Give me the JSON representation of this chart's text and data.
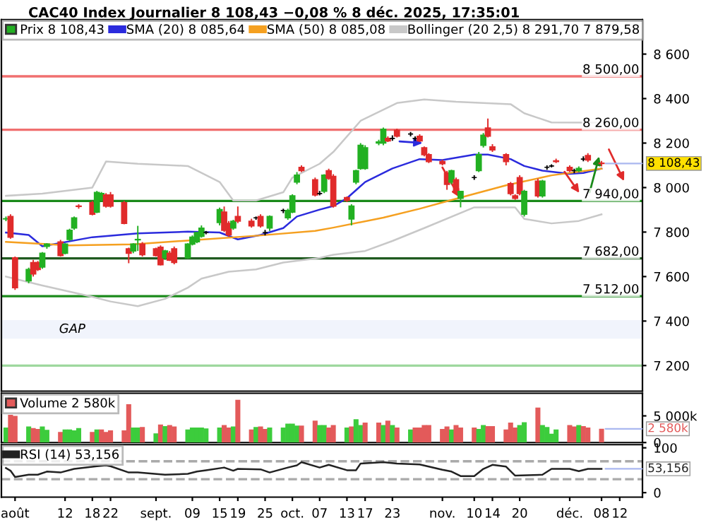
{
  "chart_data": [
    {
      "type": "candlestick",
      "title": "CAC40 Index Journalier 8 108,43 −0,08 % 8 déc. 2025, 17:35:01",
      "legend": "top left",
      "tick_labels": "y",
      "x": [
        "2025-07-30",
        "2025-07-31",
        "2025-08-01",
        "2025-08-04",
        "2025-08-05",
        "2025-08-06",
        "2025-08-07",
        "2025-08-08",
        "2025-08-11",
        "2025-08-12",
        "2025-08-13",
        "2025-08-14",
        "2025-08-15",
        "2025-08-18",
        "2025-08-19",
        "2025-08-20",
        "2025-08-21",
        "2025-08-22",
        "2025-08-25",
        "2025-08-26",
        "2025-08-27",
        "2025-08-28",
        "2025-08-29",
        "2025-09-01",
        "2025-09-02",
        "2025-09-03",
        "2025-09-04",
        "2025-09-05",
        "2025-09-08",
        "2025-09-09",
        "2025-09-10",
        "2025-09-11",
        "2025-09-12",
        "2025-09-15",
        "2025-09-16",
        "2025-09-17",
        "2025-09-18",
        "2025-09-19",
        "2025-09-22",
        "2025-09-23",
        "2025-09-24",
        "2025-09-25",
        "2025-09-26",
        "2025-09-29",
        "2025-09-30",
        "2025-10-01",
        "2025-10-02",
        "2025-10-03",
        "2025-10-06",
        "2025-10-07",
        "2025-10-08",
        "2025-10-09",
        "2025-10-10",
        "2025-10-13",
        "2025-10-14",
        "2025-10-15",
        "2025-10-16",
        "2025-10-17",
        "2025-10-20",
        "2025-10-21",
        "2025-10-22",
        "2025-10-23",
        "2025-10-24",
        "2025-10-27",
        "2025-10-28",
        "2025-10-29",
        "2025-10-30",
        "2025-10-31",
        "2025-11-03",
        "2025-11-04",
        "2025-11-05",
        "2025-11-06",
        "2025-11-07",
        "2025-11-10",
        "2025-11-11",
        "2025-11-12",
        "2025-11-13",
        "2025-11-14",
        "2025-11-17",
        "2025-11-18",
        "2025-11-19",
        "2025-11-20",
        "2025-11-21",
        "2025-11-24",
        "2025-11-25",
        "2025-11-26",
        "2025-11-27",
        "2025-11-28",
        "2025-12-01",
        "2025-12-02",
        "2025-12-03",
        "2025-12-04",
        "2025-12-05",
        "2025-12-08"
      ],
      "xlim": [
        "2025-07-29",
        "2025-12-17"
      ],
      "ylim": [
        7085,
        8755
      ],
      "yticks": [
        {
          "value": 7200,
          "label": "7 200"
        },
        {
          "value": 7400,
          "label": "7 400"
        },
        {
          "value": 7600,
          "label": "7 600"
        },
        {
          "value": 7800,
          "label": "7 800"
        },
        {
          "value": 8000,
          "label": "8 000"
        },
        {
          "value": 8200,
          "label": "8 200"
        },
        {
          "value": 8400,
          "label": "8 400"
        },
        {
          "value": 8600,
          "label": "8 600"
        }
      ],
      "ref_lines": [
        {
          "axis": "y",
          "value": 8500,
          "label": "8 500,00",
          "color": "#f07070"
        },
        {
          "axis": "y",
          "value": 8260,
          "label": "8 260,00",
          "color": "#f07070"
        },
        {
          "axis": "y",
          "value": 7940,
          "label": "7 940,00",
          "color": "#1a8a1a"
        },
        {
          "axis": "y",
          "value": 7682,
          "label": "7 682,00",
          "color": "#1f5a1f"
        },
        {
          "axis": "y",
          "value": 7512,
          "label": "7 512,00",
          "color": "#1a8a1a"
        },
        {
          "axis": "y",
          "value": 7200,
          "label": null,
          "color": "#9ed89e"
        }
      ],
      "bands": [
        {
          "axis": "y",
          "from": 7325,
          "to": 7400,
          "label": "GAP",
          "color": "#c8d4f5"
        }
      ],
      "annotations": [
        {
          "text": "8 108,43",
          "x": "2025-12-08",
          "y": 8108.43
        }
      ],
      "series": [
        {
          "name": "Prix 8 108,43",
          "type": "candlestick",
          "ohlc": [
            [
              7859,
              7870,
              7849,
              7860
            ],
            [
              7870,
              7880,
              7770,
              7777
            ],
            [
              7684,
              7690,
              7540,
              7550
            ],
            [
              7581,
              7640,
              7570,
              7632
            ],
            [
              7663,
              7675,
              7600,
              7612
            ],
            [
              7663,
              7670,
              7625,
              7632
            ],
            [
              7643,
              7710,
              7635,
              7705
            ],
            [
              7736,
              7750,
              7725,
              7746
            ],
            [
              7756,
              7765,
              7690,
              7694
            ],
            [
              7705,
              7750,
              7700,
              7746
            ],
            [
              7767,
              7815,
              7760,
              7808
            ],
            [
              7818,
              7870,
              7810,
              7864
            ],
            [
              7917,
              7925,
              7905,
              7915
            ],
            [
              7932,
              7940,
              7875,
              7880
            ],
            [
              7890,
              7985,
              7885,
              7978
            ],
            [
              7946,
              7980,
              7940,
              7973
            ],
            [
              7967,
              7975,
              7910,
              7917
            ],
            [
              7967,
              7980,
              7910,
              7917
            ],
            [
              7932,
              7940,
              7835,
              7839
            ],
            [
              7725,
              7730,
              7660,
              7705
            ],
            [
              7715,
              7750,
              7705,
              7746
            ],
            [
              7765,
              7828,
              7715,
              7767
            ],
            [
              7746,
              7755,
              7690,
              7698
            ],
            [
              7725,
              7730,
              7690,
              7694
            ],
            [
              7732,
              7740,
              7650,
              7653
            ],
            [
              7684,
              7720,
              7675,
              7715
            ],
            [
              7705,
              7715,
              7670,
              7674
            ],
            [
              7725,
              7735,
              7655,
              7663
            ],
            [
              7684,
              7750,
              7680,
              7746
            ],
            [
              7746,
              7785,
              7740,
              7777
            ],
            [
              7756,
              7800,
              7750,
              7798
            ],
            [
              7781,
              7830,
              7775,
              7818
            ],
            [
              7798,
              7805,
              7790,
              7798
            ],
            [
              7843,
              7910,
              7830,
              7901
            ],
            [
              7890,
              7915,
              7800,
              7808
            ],
            [
              7839,
              7850,
              7780,
              7787
            ],
            [
              7818,
              7855,
              7810,
              7849
            ],
            [
              7870,
              7915,
              7840,
              7849
            ],
            [
              7849,
              7860,
              7820,
              7828
            ],
            [
              7864,
              7870,
              7855,
              7864
            ],
            [
              7870,
              7880,
              7820,
              7828
            ],
            [
              7798,
              7810,
              7785,
              7798
            ],
            [
              7818,
              7875,
              7805,
              7870
            ],
            [
              7897,
              7905,
              7885,
              7897
            ],
            [
              7864,
              7905,
              7855,
              7897
            ],
            [
              7890,
              7970,
              7885,
              7963
            ],
            [
              8025,
              8070,
              8015,
              8056
            ],
            [
              8091,
              8100,
              8070,
              8076
            ],
            [
              8035,
              8045,
              7960,
              7967
            ],
            [
              7973,
              7985,
              7965,
              7973
            ],
            [
              7983,
              8060,
              7975,
              8056
            ],
            [
              8076,
              8085,
              8035,
              8041
            ],
            [
              8050,
              8060,
              7910,
              7917
            ],
            [
              7955,
              7960,
              7935,
              7942
            ],
            [
              7859,
              7925,
              7830,
              7917
            ],
            [
              8025,
              8080,
              8015,
              8076
            ],
            [
              8086,
              8200,
              8080,
              8190
            ],
            [
              8086,
              8190,
              8080,
              8179
            ],
            [
              8200,
              8215,
              8190,
              8205
            ],
            [
              8200,
              8270,
              8190,
              8262
            ],
            [
              8221,
              8230,
              8205,
              8210
            ],
            [
              8221,
              8235,
              8210,
              8221
            ],
            [
              8258,
              8265,
              8225,
              8231
            ],
            [
              8241,
              8250,
              8230,
              8241
            ],
            [
              8221,
              8230,
              8210,
              8221
            ],
            [
              8231,
              8240,
              8205,
              8210
            ],
            [
              8179,
              8185,
              8140,
              8148
            ],
            [
              8148,
              8155,
              8110,
              8117
            ],
            [
              8117,
              8125,
              8100,
              8107
            ],
            [
              8066,
              8075,
              7990,
              8014
            ],
            [
              8025,
              8080,
              8015,
              8076
            ],
            [
              8035,
              8045,
              7975,
              7983
            ],
            [
              7952,
              7985,
              7911,
              7983
            ],
            [
              8045,
              8055,
              8035,
              8045
            ],
            [
              8076,
              8160,
              8070,
              8148
            ],
            [
              8190,
              8245,
              8180,
              8235
            ],
            [
              8268,
              8310,
              8225,
              8231
            ],
            [
              8183,
              8195,
              8160,
              8169
            ],
            [
              8148,
              8155,
              8100,
              8117
            ],
            [
              8018,
              8025,
              7965,
              7973
            ],
            [
              7963,
              7970,
              7945,
              7952
            ],
            [
              8045,
              8055,
              7965,
              7973
            ],
            [
              7880,
              7990,
              7870,
              7983
            ],
            [
              8029,
              8040,
              7955,
              7963
            ],
            [
              7963,
              8035,
              7955,
              8029
            ],
            [
              8091,
              8100,
              8080,
              8091
            ],
            [
              8097,
              8105,
              8090,
              8097
            ],
            [
              8120,
              8130,
              8110,
              8117
            ],
            [
              8091,
              8100,
              8070,
              8076
            ],
            [
              8076,
              8085,
              8065,
              8076
            ],
            [
              8076,
              8095,
              8070,
              8086
            ],
            [
              8128,
              8140,
              8118,
              8128
            ],
            [
              8144,
              8155,
              8115,
              8124
            ],
            [
              8110,
              8120,
              8095,
              8108.43
            ]
          ],
          "colors": [
            "#22b022",
            "#e02b2b",
            "#e02b2b",
            "#22b022",
            "#e02b2b",
            "#e02b2b",
            "#22b022",
            "#22b022",
            "#e02b2b",
            "#22b022",
            "#22b022",
            "#22b022",
            "#e02b2b",
            "#e02b2b",
            "#22b022",
            "#22b022",
            "#e02b2b",
            "#e02b2b",
            "#e02b2b",
            "#e02b2b",
            "#22b022",
            "#22b022",
            "#e02b2b",
            "#e02b2b",
            "#e02b2b",
            "#22b022",
            "#e02b2b",
            "#e02b2b",
            "#22b022",
            "#22b022",
            "#22b022",
            "#22b022",
            "#000000",
            "#22b022",
            "#e02b2b",
            "#e02b2b",
            "#22b022",
            "#e02b2b",
            "#e02b2b",
            "#000000",
            "#e02b2b",
            "#000000",
            "#22b022",
            "#000000",
            "#22b022",
            "#22b022",
            "#22b022",
            "#e02b2b",
            "#e02b2b",
            "#000000",
            "#22b022",
            "#e02b2b",
            "#e02b2b",
            "#e02b2b",
            "#22b022",
            "#22b022",
            "#22b022",
            "#22b022",
            "#22b022",
            "#22b022",
            "#e02b2b",
            "#000000",
            "#e02b2b",
            "#000000",
            "#000000",
            "#e02b2b",
            "#e02b2b",
            "#e02b2b",
            "#e02b2b",
            "#e02b2b",
            "#22b022",
            "#e02b2b",
            "#22b022",
            "#000000",
            "#22b022",
            "#22b022",
            "#e02b2b",
            "#e02b2b",
            "#e02b2b",
            "#e02b2b",
            "#e02b2b",
            "#e02b2b",
            "#22b022",
            "#e02b2b",
            "#22b022",
            "#000000",
            "#000000",
            "#e02b2b",
            "#e02b2b",
            "#000000",
            "#22b022",
            "#000000",
            "#e02b2b",
            "#e02b2b"
          ]
        },
        {
          "name": "SMA (20) 8 085,64",
          "type": "line",
          "color": "#2b2bdd",
          "x": [
            "2025-07-30",
            "2025-08-04",
            "2025-08-07",
            "2025-08-18",
            "2025-08-28",
            "2025-09-08",
            "2025-09-15",
            "2025-09-19",
            "2025-09-24",
            "2025-09-29",
            "2025-10-02",
            "2025-10-07",
            "2025-10-10",
            "2025-10-13",
            "2025-10-17",
            "2025-10-23",
            "2025-10-29",
            "2025-11-03",
            "2025-11-10",
            "2025-11-13",
            "2025-11-18",
            "2025-11-21",
            "2025-11-25",
            "2025-12-01",
            "2025-12-04",
            "2025-12-08"
          ],
          "values": [
            7798,
            7787,
            7736,
            7777,
            7794,
            7802,
            7798,
            7767,
            7787,
            7818,
            7870,
            7901,
            7917,
            7952,
            8025,
            8086,
            8128,
            8124,
            8148,
            8148,
            8128,
            8097,
            8076,
            8062,
            8066,
            8085.64
          ]
        },
        {
          "name": "SMA (50) 8 085,08",
          "type": "line",
          "color": "#f5a020",
          "x": [
            "2025-07-30",
            "2025-08-13",
            "2025-08-27",
            "2025-09-10",
            "2025-09-24",
            "2025-10-06",
            "2025-10-10",
            "2025-10-21",
            "2025-10-29",
            "2025-11-06",
            "2025-11-17",
            "2025-11-27",
            "2025-12-08"
          ],
          "values": [
            7756,
            7740,
            7745,
            7765,
            7785,
            7805,
            7820,
            7865,
            7905,
            7950,
            8010,
            8055,
            8085.08
          ]
        },
        {
          "name": "Bollinger (20 2,5) 8 291,70 7 879,58",
          "type": "line",
          "color": "#c8c8c8",
          "x": [
            "2025-07-30",
            "2025-08-07",
            "2025-08-18",
            "2025-08-21",
            "2025-08-28",
            "2025-09-08",
            "2025-09-15",
            "2025-09-18",
            "2025-09-23",
            "2025-09-29",
            "2025-10-01",
            "2025-10-07",
            "2025-10-10",
            "2025-10-16",
            "2025-10-24",
            "2025-10-30",
            "2025-11-06",
            "2025-11-18",
            "2025-11-21",
            "2025-11-27",
            "2025-12-08"
          ],
          "values": [
            7963,
            7973,
            8000,
            8117,
            8107,
            8097,
            8025,
            7942,
            7942,
            7979,
            8045,
            8107,
            8160,
            8300,
            8380,
            8396,
            8386,
            8375,
            8334,
            8293,
            8291.7
          ]
        },
        {
          "type": "line",
          "color": "#c8c8c8",
          "x": [
            "2025-07-30",
            "2025-08-07",
            "2025-08-18",
            "2025-08-22",
            "2025-08-28",
            "2025-09-03",
            "2025-09-08",
            "2025-09-11",
            "2025-09-17",
            "2025-09-23",
            "2025-09-29",
            "2025-10-07",
            "2025-10-10",
            "2025-10-17",
            "2025-10-23",
            "2025-10-30",
            "2025-11-10",
            "2025-11-19",
            "2025-11-21",
            "2025-11-27",
            "2025-12-03",
            "2025-12-08"
          ],
          "values": [
            7600,
            7560,
            7509,
            7488,
            7467,
            7500,
            7550,
            7591,
            7622,
            7632,
            7663,
            7684,
            7698,
            7715,
            7760,
            7818,
            7911,
            7911,
            7859,
            7839,
            7850,
            7879.58
          ]
        }
      ]
    },
    {
      "type": "bar",
      "legend": "top left",
      "tick_labels": "y",
      "x": [
        "2025-07-30",
        "2025-07-31",
        "2025-08-01",
        "2025-08-04",
        "2025-08-05",
        "2025-08-06",
        "2025-08-07",
        "2025-08-08",
        "2025-08-11",
        "2025-08-12",
        "2025-08-13",
        "2025-08-14",
        "2025-08-15",
        "2025-08-18",
        "2025-08-19",
        "2025-08-20",
        "2025-08-21",
        "2025-08-22",
        "2025-08-25",
        "2025-08-26",
        "2025-08-27",
        "2025-08-28",
        "2025-08-29",
        "2025-09-01",
        "2025-09-02",
        "2025-09-03",
        "2025-09-04",
        "2025-09-05",
        "2025-09-08",
        "2025-09-09",
        "2025-09-10",
        "2025-09-11",
        "2025-09-12",
        "2025-09-15",
        "2025-09-16",
        "2025-09-17",
        "2025-09-18",
        "2025-09-19",
        "2025-09-22",
        "2025-09-23",
        "2025-09-24",
        "2025-09-25",
        "2025-09-26",
        "2025-09-29",
        "2025-09-30",
        "2025-10-01",
        "2025-10-02",
        "2025-10-03",
        "2025-10-06",
        "2025-10-07",
        "2025-10-08",
        "2025-10-09",
        "2025-10-10",
        "2025-10-13",
        "2025-10-14",
        "2025-10-15",
        "2025-10-16",
        "2025-10-17",
        "2025-10-20",
        "2025-10-21",
        "2025-10-22",
        "2025-10-23",
        "2025-10-24",
        "2025-10-27",
        "2025-10-28",
        "2025-10-29",
        "2025-10-30",
        "2025-10-31",
        "2025-11-03",
        "2025-11-04",
        "2025-11-05",
        "2025-11-06",
        "2025-11-07",
        "2025-11-10",
        "2025-11-11",
        "2025-11-12",
        "2025-11-13",
        "2025-11-14",
        "2025-11-17",
        "2025-11-18",
        "2025-11-19",
        "2025-11-20",
        "2025-11-21",
        "2025-11-24",
        "2025-11-25",
        "2025-11-26",
        "2025-11-27",
        "2025-11-28",
        "2025-12-01",
        "2025-12-02",
        "2025-12-03",
        "2025-12-04",
        "2025-12-05",
        "2025-12-08"
      ],
      "xlim": [
        "2025-07-29",
        "2025-12-17"
      ],
      "ylim": [
        0,
        9240
      ],
      "yticks": [
        0,
        {
          "value": 5000,
          "label": "5 000k"
        }
      ],
      "annotations": [
        {
          "text": "2 580k",
          "x": "2025-12-08",
          "y": 2580
        }
      ],
      "series": [
        {
          "name": "Volume 2 580k",
          "values": [
            2820,
            5190,
            5000,
            3000,
            2730,
            2550,
            3000,
            2370,
            2000,
            2460,
            2460,
            2280,
            2730,
            2000,
            2460,
            2460,
            2000,
            2280,
            2280,
            7190,
            2820,
            2820,
            2910,
            1730,
            3370,
            3090,
            3280,
            3000,
            2460,
            2820,
            2820,
            2820,
            2640,
            2820,
            3280,
            2820,
            3000,
            8000,
            2460,
            2910,
            3000,
            2550,
            2820,
            2820,
            3550,
            3550,
            3190,
            3190,
            4100,
            3280,
            3280,
            2820,
            3280,
            2820,
            3000,
            4370,
            3280,
            3730,
            3730,
            3280,
            4100,
            3280,
            2820,
            2460,
            2820,
            2820,
            3280,
            3280,
            2550,
            3000,
            2460,
            3280,
            2820,
            2820,
            2550,
            3280,
            3090,
            3090,
            2460,
            3730,
            2820,
            3280,
            3820,
            6550,
            3280,
            2910,
            1640,
            2460,
            3280,
            3000,
            3280,
            3090,
            2820,
            2580
          ],
          "colors": [
            "#3ccc3c",
            "#e35a5a",
            "#e35a5a",
            "#3ccc3c",
            "#e35a5a",
            "#e35a5a",
            "#3ccc3c",
            "#3ccc3c",
            "#e35a5a",
            "#3ccc3c",
            "#3ccc3c",
            "#3ccc3c",
            "#3ccc3c",
            "#e35a5a",
            "#3ccc3c",
            "#e35a5a",
            "#e35a5a",
            "#e35a5a",
            "#e35a5a",
            "#e35a5a",
            "#3ccc3c",
            "#3ccc3c",
            "#e35a5a",
            "#3ccc3c",
            "#e35a5a",
            "#3ccc3c",
            "#e35a5a",
            "#e35a5a",
            "#3ccc3c",
            "#3ccc3c",
            "#3ccc3c",
            "#3ccc3c",
            "#3ccc3c",
            "#3ccc3c",
            "#e35a5a",
            "#e35a5a",
            "#3ccc3c",
            "#e35a5a",
            "#e35a5a",
            "#3ccc3c",
            "#e35a5a",
            "#e35a5a",
            "#3ccc3c",
            "#3ccc3c",
            "#3ccc3c",
            "#3ccc3c",
            "#3ccc3c",
            "#e35a5a",
            "#e35a5a",
            "#3ccc3c",
            "#3ccc3c",
            "#e35a5a",
            "#e35a5a",
            "#3ccc3c",
            "#e35a5a",
            "#3ccc3c",
            "#3ccc3c",
            "#e35a5a",
            "#e35a5a",
            "#3ccc3c",
            "#e35a5a",
            "#3ccc3c",
            "#e35a5a",
            "#3ccc3c",
            "#e35a5a",
            "#e35a5a",
            "#e35a5a",
            "#e35a5a",
            "#e35a5a",
            "#e35a5a",
            "#3ccc3c",
            "#e35a5a",
            "#e35a5a",
            "#e35a5a",
            "#3ccc3c",
            "#3ccc3c",
            "#e35a5a",
            "#e35a5a",
            "#e35a5a",
            "#e35a5a",
            "#e35a5a",
            "#3ccc3c",
            "#3ccc3c",
            "#e35a5a",
            "#3ccc3c",
            "#3ccc3c",
            "#3ccc3c",
            "#3ccc3c",
            "#e35a5a",
            "#e35a5a",
            "#3ccc3c",
            "#e35a5a",
            "#e35a5a",
            "#e35a5a"
          ]
        }
      ]
    },
    {
      "type": "line",
      "legend": "top left",
      "x": [
        "2025-07-30",
        "2025-07-31",
        "2025-08-01",
        "2025-08-04",
        "2025-08-06",
        "2025-08-08",
        "2025-08-11",
        "2025-08-14",
        "2025-08-19",
        "2025-08-21",
        "2025-08-22",
        "2025-08-26",
        "2025-08-28",
        "2025-09-03",
        "2025-09-08",
        "2025-09-10",
        "2025-09-12",
        "2025-09-16",
        "2025-09-18",
        "2025-09-19",
        "2025-09-24",
        "2025-09-26",
        "2025-09-30",
        "2025-10-02",
        "2025-10-03",
        "2025-10-07",
        "2025-10-09",
        "2025-10-13",
        "2025-10-15",
        "2025-10-16",
        "2025-10-21",
        "2025-10-24",
        "2025-10-29",
        "2025-11-03",
        "2025-11-05",
        "2025-11-07",
        "2025-11-10",
        "2025-11-12",
        "2025-11-14",
        "2025-11-17",
        "2025-11-19",
        "2025-11-25",
        "2025-11-27",
        "2025-12-01",
        "2025-12-03",
        "2025-12-05",
        "2025-12-08"
      ],
      "xlim": [
        "2025-07-29",
        "2025-12-17"
      ],
      "xticks": [
        {
          "value": "2025-08-01",
          "label": "août"
        },
        {
          "value": "2025-08-12",
          "label": "12"
        },
        {
          "value": "2025-08-18",
          "label": "18"
        },
        {
          "value": "2025-08-22",
          "label": "22"
        },
        {
          "value": "2025-09-01",
          "label": "sept."
        },
        {
          "value": "2025-09-09",
          "label": "09"
        },
        {
          "value": "2025-09-15",
          "label": "15"
        },
        {
          "value": "2025-09-19",
          "label": "19"
        },
        {
          "value": "2025-09-25",
          "label": "25"
        },
        {
          "value": "2025-10-01",
          "label": "oct."
        },
        {
          "value": "2025-10-07",
          "label": "07"
        },
        {
          "value": "2025-10-13",
          "label": "13"
        },
        {
          "value": "2025-10-17",
          "label": "17"
        },
        {
          "value": "2025-10-23",
          "label": "23"
        },
        {
          "value": "2025-11-03",
          "label": "nov."
        },
        {
          "value": "2025-11-10",
          "label": "10"
        },
        {
          "value": "2025-11-14",
          "label": "14"
        },
        {
          "value": "2025-11-20",
          "label": "20"
        },
        {
          "value": "2025-12-01",
          "label": "déc."
        },
        {
          "value": "2025-12-08",
          "label": "08"
        },
        {
          "value": "2025-12-12",
          "label": "12"
        }
      ],
      "ylim": [
        -10,
        107
      ],
      "yticks": [
        0,
        100
      ],
      "ref_lines": [
        {
          "axis": "y",
          "value": 70,
          "label": null,
          "color": "#aaaaaa",
          "line_style": "dashed"
        },
        {
          "axis": "y",
          "value": 30,
          "label": null,
          "color": "#aaaaaa",
          "line_style": "dashed"
        }
      ],
      "annotations": [
        {
          "text": "53,156",
          "x": "2025-12-08",
          "y": 53.156
        }
      ],
      "series": [
        {
          "name": "RSI (14) 53,156",
          "color": "#222222",
          "values": [
            55,
            49,
            35,
            40,
            40,
            47,
            45,
            53,
            59,
            61,
            59,
            45,
            45,
            40,
            42,
            47,
            50,
            56,
            49,
            53,
            52,
            45,
            56,
            61,
            68,
            56,
            62,
            50,
            50,
            65,
            68,
            65,
            63,
            51,
            47,
            37,
            37,
            53,
            62,
            58,
            38,
            40,
            53,
            53,
            48,
            53,
            53.156
          ]
        }
      ]
    }
  ]
}
